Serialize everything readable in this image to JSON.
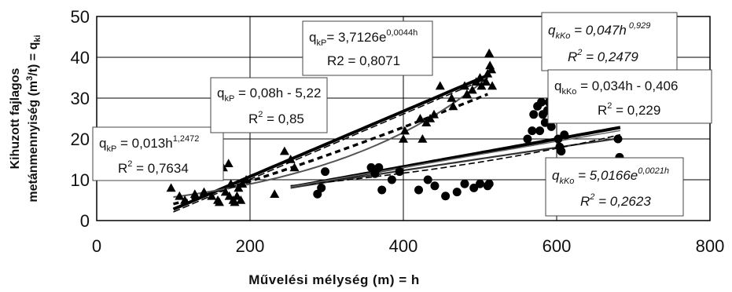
{
  "chart_data": {
    "type": "scatter",
    "xlabel": "Művelési mélység (m) = h",
    "ylabel_line1": "Kihuzott fajlagos",
    "ylabel_line2": "metánmennyiség (m",
    "ylabel_sup": "3",
    "ylabel_line2b": "/t) = q",
    "ylabel_sub": "ki",
    "xlim": [
      0,
      800
    ],
    "ylim": [
      0,
      50
    ],
    "xticks": [
      "0",
      "200",
      "400",
      "600",
      "800"
    ],
    "yticks": [
      "0",
      "10",
      "20",
      "30",
      "40",
      "50"
    ],
    "grid": "major",
    "series": [
      {
        "marker": "triangle",
        "color": "#000000",
        "points": [
          [
            97,
            8
          ],
          [
            108,
            6
          ],
          [
            115,
            5
          ],
          [
            128,
            6.5
          ],
          [
            140,
            7
          ],
          [
            150,
            6
          ],
          [
            158,
            5
          ],
          [
            160,
            4.5
          ],
          [
            165,
            13
          ],
          [
            168,
            7
          ],
          [
            172,
            14
          ],
          [
            173,
            6
          ],
          [
            175,
            9
          ],
          [
            178,
            5
          ],
          [
            180,
            4.5
          ],
          [
            183,
            6
          ],
          [
            185,
            8
          ],
          [
            188,
            5
          ],
          [
            190,
            9
          ],
          [
            195,
            10
          ],
          [
            232,
            6.5
          ],
          [
            245,
            17
          ],
          [
            253,
            15
          ],
          [
            258,
            13
          ],
          [
            400,
            20
          ],
          [
            402,
            22
          ],
          [
            422,
            25
          ],
          [
            425,
            20
          ],
          [
            430,
            24
          ],
          [
            435,
            25
          ],
          [
            440,
            26
          ],
          [
            448,
            33
          ],
          [
            463,
            30
          ],
          [
            465,
            28
          ],
          [
            480,
            33
          ],
          [
            483,
            31
          ],
          [
            490,
            32
          ],
          [
            495,
            34
          ],
          [
            500,
            35
          ],
          [
            502,
            33
          ],
          [
            508,
            34
          ],
          [
            510,
            36
          ],
          [
            512,
            41
          ],
          [
            513,
            38
          ],
          [
            515,
            37
          ],
          [
            516,
            33
          ]
        ]
      },
      {
        "marker": "circle",
        "color": "#000000",
        "points": [
          [
            288,
            6.5
          ],
          [
            293,
            8
          ],
          [
            298,
            12
          ],
          [
            358,
            13
          ],
          [
            363,
            11.5
          ],
          [
            368,
            13
          ],
          [
            372,
            7.5
          ],
          [
            385,
            10
          ],
          [
            395,
            12
          ],
          [
            420,
            7.5
          ],
          [
            432,
            10
          ],
          [
            441,
            8.5
          ],
          [
            455,
            6
          ],
          [
            470,
            7
          ],
          [
            480,
            9
          ],
          [
            492,
            8
          ],
          [
            500,
            9
          ],
          [
            510,
            8.5
          ],
          [
            512,
            9
          ],
          [
            562,
            20
          ],
          [
            568,
            22
          ],
          [
            570,
            26
          ],
          [
            575,
            28
          ],
          [
            578,
            22
          ],
          [
            580,
            29
          ],
          [
            582,
            26
          ],
          [
            585,
            24
          ],
          [
            588,
            27
          ],
          [
            590,
            29
          ],
          [
            593,
            23
          ],
          [
            595,
            30
          ],
          [
            597,
            31
          ],
          [
            598,
            25
          ],
          [
            600,
            35
          ],
          [
            601,
            33
          ],
          [
            602,
            20
          ],
          [
            604,
            18
          ],
          [
            606,
            17
          ],
          [
            608,
            14
          ],
          [
            610,
            21
          ],
          [
            612,
            13
          ],
          [
            680,
            20
          ],
          [
            682,
            15.5
          ]
        ]
      }
    ],
    "fits": [
      {
        "dataset": "triangle",
        "kind": "power",
        "a": 0.013,
        "b": 1.2472,
        "x0": 100,
        "x1": 510,
        "stroke": "#000000",
        "width": 3.4,
        "dash": "7,5"
      },
      {
        "dataset": "triangle",
        "kind": "linear",
        "a": 0.08,
        "b": -5.22,
        "x0": 100,
        "x1": 510,
        "stroke": "#000000",
        "width": 4,
        "dash": ""
      },
      {
        "dataset": "triangle",
        "kind": "exp",
        "a": 3.7126,
        "b": 0.0044,
        "x0": 100,
        "x1": 510,
        "stroke": "#555555",
        "width": 2,
        "dash": ""
      },
      {
        "dataset": "triangle",
        "kind": "linear",
        "a": 0.08,
        "b": -5.9,
        "x0": 100,
        "x1": 510,
        "stroke": "#000000",
        "width": 1.5,
        "dash": "9,4"
      },
      {
        "dataset": "circle",
        "kind": "linear",
        "a": 0.034,
        "b": -0.406,
        "x0": 253,
        "x1": 683,
        "stroke": "#000000",
        "width": 4,
        "dash": ""
      },
      {
        "dataset": "circle",
        "kind": "power",
        "a": 0.047,
        "b": 0.929,
        "x0": 253,
        "x1": 683,
        "stroke": "#333333",
        "width": 2.2,
        "dash": ""
      },
      {
        "dataset": "circle",
        "kind": "exp",
        "a": 5.0166,
        "b": 0.0021,
        "x0": 253,
        "x1": 683,
        "stroke": "#000000",
        "width": 1.6,
        "dash": "8,4"
      },
      {
        "dataset": "circle",
        "kind": "linear",
        "a": 0.032,
        "b": 0.2,
        "x0": 253,
        "x1": 683,
        "stroke": "#666666",
        "width": 1.4,
        "dash": ""
      }
    ],
    "annotations": {
      "tri_power": {
        "prefix": "q",
        "sub": "kP",
        "mid": " = 0,013h",
        "sup": "1,2472",
        "r_prefix": "R",
        "r_sup": "2",
        "r_value": " = 0,7634"
      },
      "tri_linear": {
        "prefix": "q",
        "sub": "kP",
        "mid": " = 0,08h - 5,22",
        "r_prefix": "R",
        "r_sup": "2",
        "r_value": " = 0,85"
      },
      "tri_exp": {
        "prefix": "q",
        "sub": "kP",
        "mid": "= 3,7126e",
        "sup": "0,0044h",
        "r_line": "R2 = 0,8071"
      },
      "circ_power": {
        "prefix": "q",
        "sub": "kKo",
        "mid": " = 0,047h",
        "sup": " 0,929",
        "r_prefix": "R",
        "r_sup": "2",
        "r_value": " = 0,2479"
      },
      "circ_linear": {
        "prefix": "q",
        "sub": "kKo",
        "mid": " = 0,034h - 0,406",
        "r_prefix": "R",
        "r_sup": "2",
        "r_value": " = 0,229"
      },
      "circ_exp": {
        "prefix": "q",
        "sub": "kKo",
        "mid": " = 5,0166e",
        "sup": "0,0021h",
        "r_prefix": "R",
        "r_sup": "2",
        "r_value": " = 0,2623"
      }
    }
  }
}
